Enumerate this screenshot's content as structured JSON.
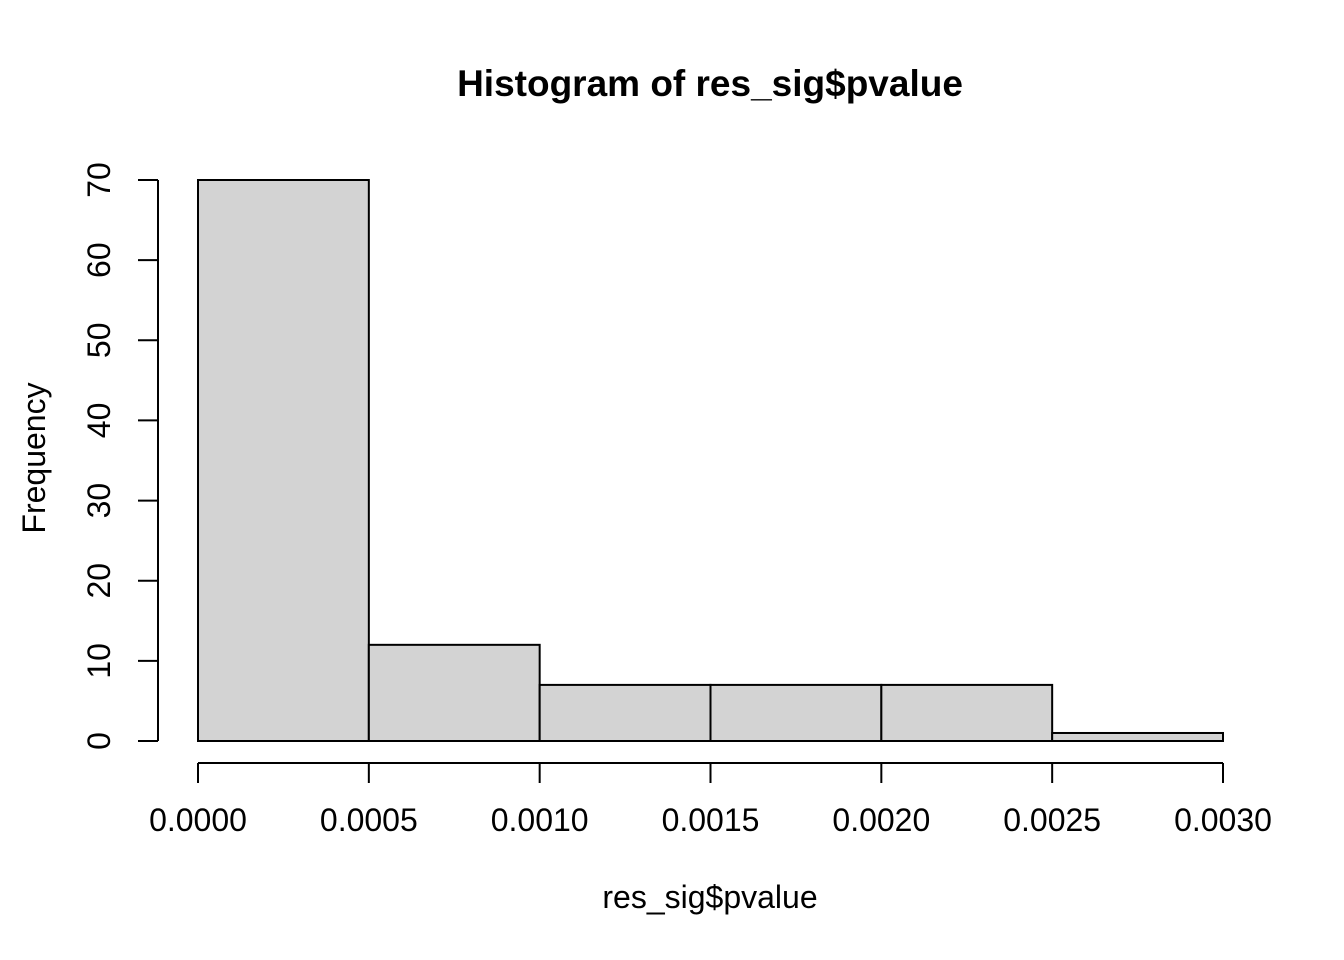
{
  "chart_data": {
    "type": "bar",
    "subtype": "histogram",
    "title": "Histogram of res_sig$pvalue",
    "xlabel": "res_sig$pvalue",
    "ylabel": "Frequency",
    "bin_breaks": [
      0.0,
      0.0005,
      0.001,
      0.0015,
      0.002,
      0.0025,
      0.003
    ],
    "counts": [
      70,
      12,
      7,
      7,
      7,
      1
    ],
    "xlim": [
      0.0,
      0.003
    ],
    "ylim": [
      0,
      70
    ],
    "x_tick_values": [
      0.0,
      0.0005,
      0.001,
      0.0015,
      0.002,
      0.0025,
      0.003
    ],
    "x_tick_labels": [
      "0.0000",
      "0.0005",
      "0.0010",
      "0.0015",
      "0.0020",
      "0.0025",
      "0.0030"
    ],
    "y_tick_values": [
      0,
      10,
      20,
      30,
      40,
      50,
      60,
      70
    ],
    "y_tick_labels": [
      "0",
      "10",
      "20",
      "30",
      "40",
      "50",
      "60",
      "70"
    ],
    "grid": false,
    "legend": null,
    "colors": {
      "bar_fill": "#d3d3d3",
      "bar_stroke": "#000000",
      "axis": "#000000",
      "text": "#000000",
      "background": "#ffffff"
    }
  }
}
